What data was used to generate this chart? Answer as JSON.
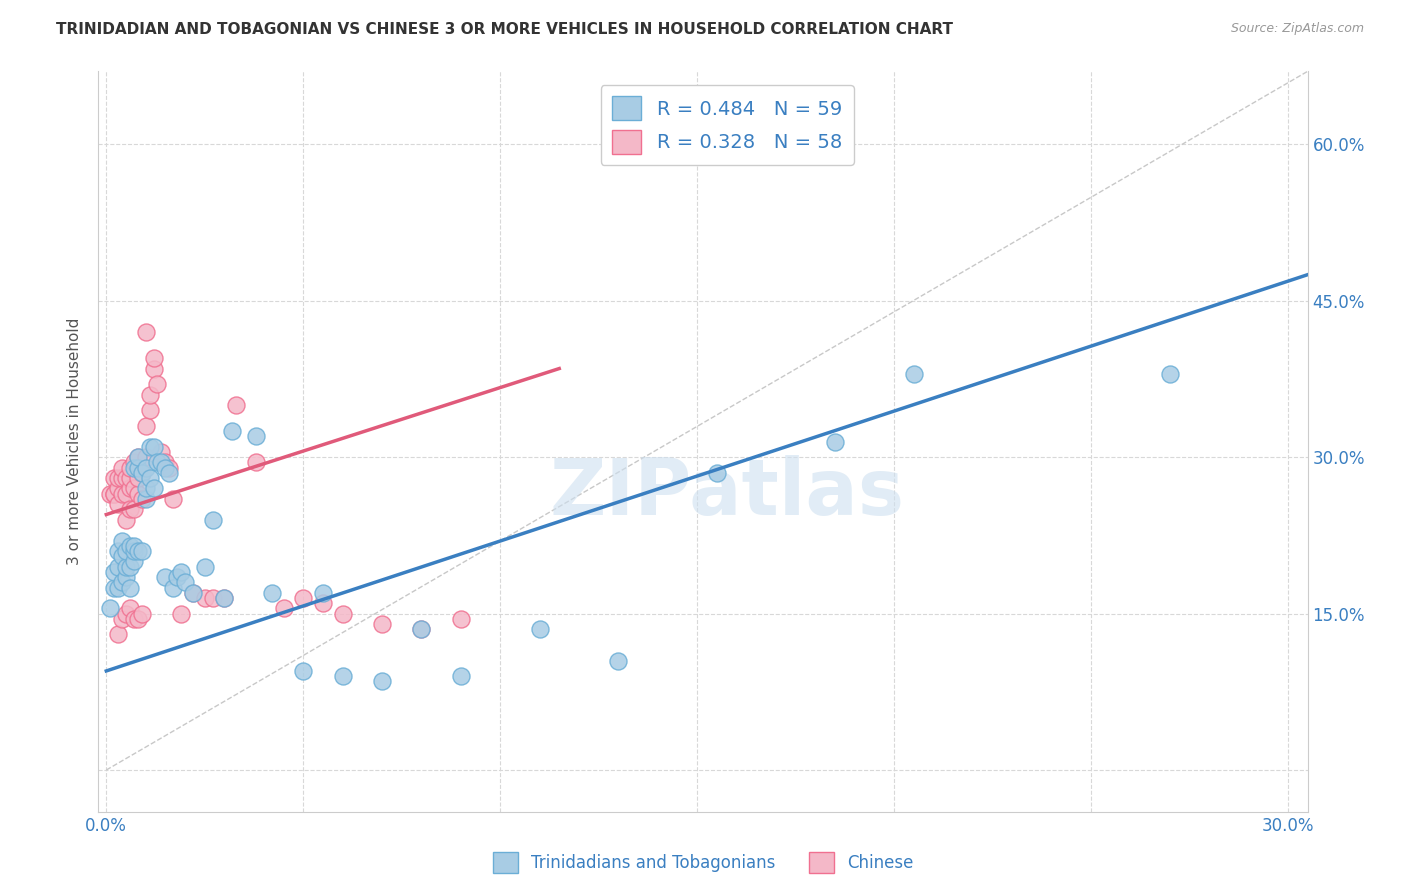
{
  "title": "TRINIDADIAN AND TOBAGONIAN VS CHINESE 3 OR MORE VEHICLES IN HOUSEHOLD CORRELATION CHART",
  "source": "Source: ZipAtlas.com",
  "ylabel": "3 or more Vehicles in Household",
  "xlim": [
    -0.002,
    0.305
  ],
  "ylim": [
    -0.04,
    0.67
  ],
  "xticks": [
    0.0,
    0.05,
    0.1,
    0.15,
    0.2,
    0.25,
    0.3
  ],
  "yticks": [
    0.0,
    0.15,
    0.3,
    0.45,
    0.6
  ],
  "blue_color": "#a8cce4",
  "pink_color": "#f4b8c8",
  "blue_edge_color": "#6baed6",
  "pink_edge_color": "#f07090",
  "blue_line_color": "#3a7fc1",
  "pink_line_color": "#e05a7a",
  "ref_line_color": "#c8c8c8",
  "legend_text_color": "#3a7fc1",
  "title_color": "#333333",
  "watermark": "ZIPatlas",
  "blue_scatter_x": [
    0.001,
    0.002,
    0.002,
    0.003,
    0.003,
    0.003,
    0.004,
    0.004,
    0.004,
    0.005,
    0.005,
    0.005,
    0.006,
    0.006,
    0.006,
    0.007,
    0.007,
    0.007,
    0.007,
    0.008,
    0.008,
    0.008,
    0.009,
    0.009,
    0.01,
    0.01,
    0.01,
    0.011,
    0.011,
    0.012,
    0.012,
    0.013,
    0.014,
    0.015,
    0.015,
    0.016,
    0.017,
    0.018,
    0.019,
    0.02,
    0.022,
    0.025,
    0.027,
    0.03,
    0.032,
    0.038,
    0.042,
    0.05,
    0.055,
    0.06,
    0.07,
    0.08,
    0.09,
    0.11,
    0.13,
    0.155,
    0.185,
    0.205,
    0.27
  ],
  "blue_scatter_y": [
    0.155,
    0.175,
    0.19,
    0.175,
    0.195,
    0.21,
    0.18,
    0.205,
    0.22,
    0.185,
    0.195,
    0.21,
    0.175,
    0.195,
    0.215,
    0.2,
    0.21,
    0.215,
    0.29,
    0.21,
    0.29,
    0.3,
    0.21,
    0.285,
    0.26,
    0.27,
    0.29,
    0.28,
    0.31,
    0.27,
    0.31,
    0.295,
    0.295,
    0.185,
    0.29,
    0.285,
    0.175,
    0.185,
    0.19,
    0.18,
    0.17,
    0.195,
    0.24,
    0.165,
    0.325,
    0.32,
    0.17,
    0.095,
    0.17,
    0.09,
    0.085,
    0.135,
    0.09,
    0.135,
    0.105,
    0.285,
    0.315,
    0.38,
    0.38
  ],
  "pink_scatter_x": [
    0.001,
    0.002,
    0.002,
    0.002,
    0.003,
    0.003,
    0.003,
    0.004,
    0.004,
    0.004,
    0.005,
    0.005,
    0.005,
    0.006,
    0.006,
    0.006,
    0.006,
    0.007,
    0.007,
    0.007,
    0.008,
    0.008,
    0.008,
    0.009,
    0.009,
    0.01,
    0.01,
    0.011,
    0.011,
    0.012,
    0.012,
    0.013,
    0.014,
    0.015,
    0.016,
    0.017,
    0.019,
    0.022,
    0.025,
    0.027,
    0.03,
    0.033,
    0.038,
    0.045,
    0.05,
    0.055,
    0.06,
    0.07,
    0.08,
    0.09,
    0.003,
    0.004,
    0.005,
    0.006,
    0.007,
    0.008,
    0.009,
    0.01
  ],
  "pink_scatter_y": [
    0.265,
    0.265,
    0.28,
    0.265,
    0.255,
    0.27,
    0.28,
    0.265,
    0.28,
    0.29,
    0.24,
    0.265,
    0.28,
    0.25,
    0.27,
    0.28,
    0.29,
    0.25,
    0.27,
    0.295,
    0.265,
    0.28,
    0.3,
    0.26,
    0.285,
    0.3,
    0.33,
    0.345,
    0.36,
    0.385,
    0.395,
    0.37,
    0.305,
    0.295,
    0.29,
    0.26,
    0.15,
    0.17,
    0.165,
    0.165,
    0.165,
    0.35,
    0.295,
    0.155,
    0.165,
    0.16,
    0.15,
    0.14,
    0.135,
    0.145,
    0.13,
    0.145,
    0.15,
    0.155,
    0.145,
    0.145,
    0.15,
    0.42
  ],
  "blue_line": {
    "x0": 0.0,
    "x1": 0.305,
    "y0": 0.095,
    "y1": 0.475
  },
  "pink_line": {
    "x0": 0.0,
    "x1": 0.115,
    "y0": 0.245,
    "y1": 0.385
  },
  "ref_line": {
    "x0": 0.0,
    "x1": 0.305,
    "y0": 0.0,
    "y1": 0.67
  }
}
